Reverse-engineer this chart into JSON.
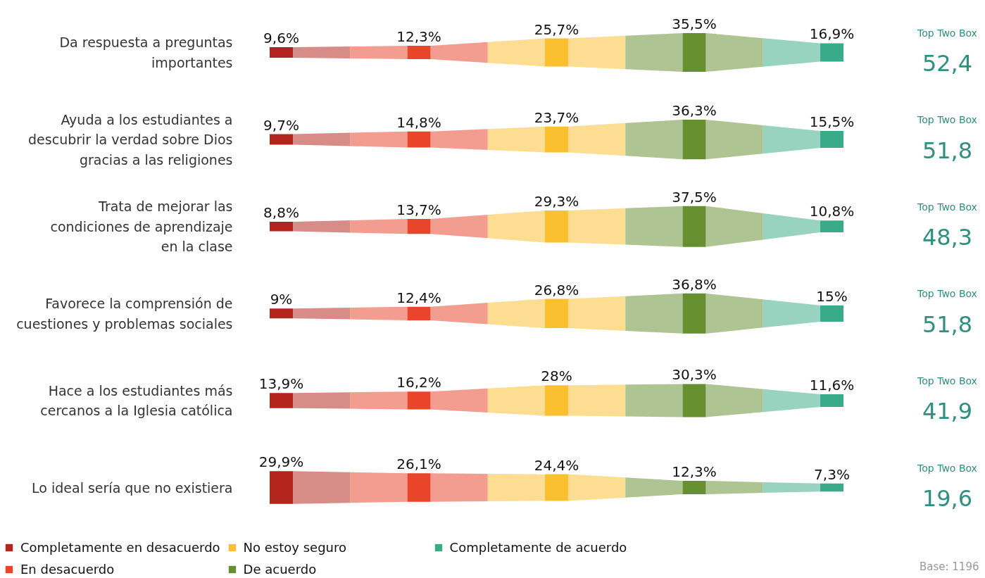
{
  "chart_data": {
    "type": "other",
    "categories": [
      "Da respuesta a preguntas\nimportantes",
      "Ayuda a los estudiantes a\ndescubrir la verdad sobre Dios\ngracias a las religiones",
      "Trata de mejorar las\ncondiciones de aprendizaje\nen la clase",
      "Favorece la comprensión de\ncuestiones y problemas sociales",
      "Hace a los estudiantes más\ncercanos a la Iglesia católica",
      "Lo ideal sería que no existiera"
    ],
    "series": [
      {
        "name": "Completamente en desacuerdo",
        "color": "#b3241c",
        "values": [
          9.6,
          9.7,
          8.8,
          9,
          13.9,
          29.9
        ],
        "value_labels": [
          "9,6%",
          "9,7%",
          "8,8%",
          "9%",
          "13,9%",
          "29,9%"
        ]
      },
      {
        "name": "En desacuerdo",
        "color": "#e8452a",
        "values": [
          12.3,
          14.8,
          13.7,
          12.4,
          16.2,
          26.1
        ],
        "value_labels": [
          "12,3%",
          "14,8%",
          "13,7%",
          "12,4%",
          "16,2%",
          "26,1%"
        ]
      },
      {
        "name": "No estoy seguro",
        "color": "#fbc02f",
        "values": [
          25.7,
          23.7,
          29.3,
          26.8,
          28,
          24.4
        ],
        "value_labels": [
          "25,7%",
          "23,7%",
          "29,3%",
          "26,8%",
          "28%",
          "24,4%"
        ]
      },
      {
        "name": "De acuerdo",
        "color": "#668f2f",
        "values": [
          35.5,
          36.3,
          37.5,
          36.8,
          30.3,
          12.3
        ],
        "value_labels": [
          "35,5%",
          "36,3%",
          "37,5%",
          "36,8%",
          "30,3%",
          "12,3%"
        ]
      },
      {
        "name": "Completamente de acuerdo",
        "color": "#3aab88",
        "values": [
          16.9,
          15.5,
          10.8,
          15,
          11.6,
          7.3
        ],
        "value_labels": [
          "16,9%",
          "15,5%",
          "10,8%",
          "15%",
          "11,6%",
          "7,3%"
        ]
      }
    ],
    "legend": "bottom",
    "annotations": [
      "Top Two Box\n52,4",
      "Top Two Box\n51,8",
      "Top Two Box\n48,3",
      "Top Two Box\n51,8",
      "Top Two Box\n41,9",
      "Top Two Box\n19,6",
      "Base: 1196"
    ]
  }
}
